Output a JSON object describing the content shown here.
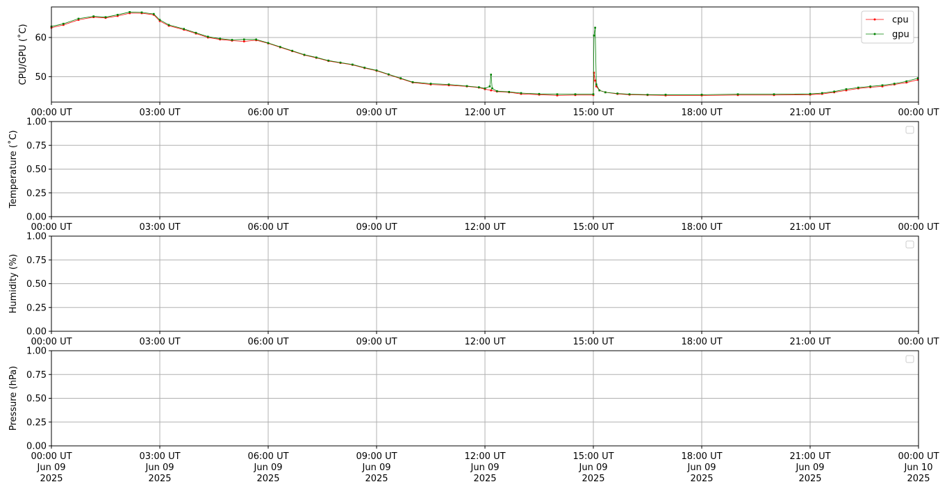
{
  "colors": {
    "cpu": "#ff0000",
    "gpu": "#008000",
    "grid": "#b0b0b0"
  },
  "chart_data": [
    {
      "type": "line",
      "ylabel": "CPU/GPU (˚C)",
      "xlim": [
        "2025-06-09T00:00Z",
        "2025-06-10T00:00Z"
      ],
      "ylim": [
        43.5,
        67.8
      ],
      "y_ticks": [
        "50",
        "60"
      ],
      "x_ticks": [
        "00:00 UT",
        "03:00 UT",
        "06:00 UT",
        "09:00 UT",
        "12:00 UT",
        "15:00 UT",
        "18:00 UT",
        "21:00 UT",
        "00:00 UT"
      ],
      "grid": true,
      "legend": "top-right",
      "series": [
        {
          "name": "cpu",
          "color": "#ff0000",
          "x": [
            "00:00",
            "00:20",
            "00:45",
            "01:10",
            "01:30",
            "01:50",
            "02:10",
            "02:30",
            "02:50",
            "03:00",
            "03:15",
            "03:40",
            "04:00",
            "04:20",
            "04:40",
            "05:00",
            "05:20",
            "05:40",
            "06:00",
            "06:20",
            "06:40",
            "07:00",
            "07:20",
            "07:40",
            "08:00",
            "08:20",
            "08:40",
            "09:00",
            "09:20",
            "09:40",
            "10:00",
            "10:30",
            "11:00",
            "11:30",
            "11:50",
            "12:00",
            "12:10",
            "12:20",
            "12:40",
            "13:00",
            "13:30",
            "14:00",
            "14:30",
            "15:00",
            "15:01",
            "15:03",
            "15:05",
            "15:10",
            "15:20",
            "15:40",
            "16:00",
            "16:30",
            "17:00",
            "18:00",
            "19:00",
            "20:00",
            "21:00",
            "21:20",
            "21:40",
            "22:00",
            "22:20",
            "22:40",
            "23:00",
            "23:20",
            "23:40",
            "23:59"
          ],
          "y": [
            62.5,
            63.2,
            64.5,
            65.2,
            65,
            65.5,
            66.2,
            66.2,
            65.8,
            64.2,
            63,
            62,
            61,
            60,
            59.5,
            59.2,
            59,
            59.3,
            58.5,
            57.5,
            56.5,
            55.5,
            54.8,
            54,
            53.5,
            53,
            52.2,
            51.5,
            50.5,
            49.5,
            48.5,
            48,
            47.8,
            47.5,
            47.2,
            46.8,
            46.5,
            46.2,
            46,
            45.6,
            45.4,
            45.2,
            45.3,
            45.3,
            51,
            49,
            47.5,
            46.5,
            46,
            45.6,
            45.4,
            45.3,
            45.2,
            45.2,
            45.3,
            45.3,
            45.4,
            45.6,
            46,
            46.5,
            47,
            47.3,
            47.5,
            48,
            48.5,
            49.2
          ]
        },
        {
          "name": "gpu",
          "color": "#008000",
          "x": [
            "00:00",
            "00:20",
            "00:45",
            "01:10",
            "01:30",
            "01:50",
            "02:10",
            "02:30",
            "02:50",
            "03:00",
            "03:15",
            "03:40",
            "04:00",
            "04:20",
            "04:40",
            "05:00",
            "05:20",
            "05:40",
            "06:00",
            "06:20",
            "06:40",
            "07:00",
            "07:20",
            "07:40",
            "08:00",
            "08:20",
            "08:40",
            "09:00",
            "09:20",
            "09:40",
            "10:00",
            "10:30",
            "11:00",
            "11:30",
            "11:50",
            "12:00",
            "12:08",
            "12:10",
            "12:12",
            "12:20",
            "12:40",
            "13:00",
            "13:30",
            "14:00",
            "14:30",
            "15:00",
            "15:01",
            "15:03",
            "15:05",
            "15:10",
            "15:20",
            "15:40",
            "16:00",
            "16:30",
            "17:00",
            "18:00",
            "19:00",
            "20:00",
            "21:00",
            "21:20",
            "21:40",
            "22:00",
            "22:20",
            "22:40",
            "23:00",
            "23:20",
            "23:40",
            "23:59"
          ],
          "y": [
            62.8,
            63.5,
            64.8,
            65.4,
            65.2,
            65.8,
            66.5,
            66.4,
            66,
            64.5,
            63.2,
            62.2,
            61.2,
            60.2,
            59.7,
            59.4,
            59.5,
            59.5,
            58.6,
            57.6,
            56.6,
            55.6,
            54.9,
            54.1,
            53.6,
            53.1,
            52.3,
            51.6,
            50.6,
            49.6,
            48.6,
            48.2,
            48,
            47.6,
            47.3,
            47,
            47.5,
            50.5,
            47,
            46.3,
            46.1,
            45.8,
            45.6,
            45.5,
            45.5,
            45.5,
            60.5,
            62.5,
            48,
            46.5,
            46,
            45.7,
            45.5,
            45.4,
            45.4,
            45.4,
            45.5,
            45.5,
            45.6,
            45.8,
            46.2,
            46.8,
            47.2,
            47.5,
            47.8,
            48.2,
            48.8,
            49.6
          ]
        }
      ]
    },
    {
      "type": "line",
      "ylabel": "Temperature (˚C)",
      "xlim": [
        "2025-06-09T00:00Z",
        "2025-06-10T00:00Z"
      ],
      "ylim": [
        0,
        1
      ],
      "y_ticks": [
        "0.00",
        "0.25",
        "0.50",
        "0.75",
        "1.00"
      ],
      "x_ticks": [
        "00:00 UT",
        "03:00 UT",
        "06:00 UT",
        "09:00 UT",
        "12:00 UT",
        "15:00 UT",
        "18:00 UT",
        "21:00 UT",
        "00:00 UT"
      ],
      "grid": true,
      "legend": "top-right",
      "series": []
    },
    {
      "type": "line",
      "ylabel": "Humidity (%)",
      "xlim": [
        "2025-06-09T00:00Z",
        "2025-06-10T00:00Z"
      ],
      "ylim": [
        0,
        1
      ],
      "y_ticks": [
        "0.00",
        "0.25",
        "0.50",
        "0.75",
        "1.00"
      ],
      "x_ticks": [
        "00:00 UT",
        "03:00 UT",
        "06:00 UT",
        "09:00 UT",
        "12:00 UT",
        "15:00 UT",
        "18:00 UT",
        "21:00 UT",
        "00:00 UT"
      ],
      "grid": true,
      "legend": "top-right",
      "series": []
    },
    {
      "type": "line",
      "ylabel": "Pressure (hPa)",
      "xlim": [
        "2025-06-09T00:00Z",
        "2025-06-10T00:00Z"
      ],
      "ylim": [
        0,
        1
      ],
      "y_ticks": [
        "0.00",
        "0.25",
        "0.50",
        "0.75",
        "1.00"
      ],
      "x_ticks": [
        "00:00 UT",
        "03:00 UT",
        "06:00 UT",
        "09:00 UT",
        "12:00 UT",
        "15:00 UT",
        "18:00 UT",
        "21:00 UT",
        "00:00 UT"
      ],
      "x_ticks_line2": [
        "Jun 09",
        "Jun 09",
        "Jun 09",
        "Jun 09",
        "Jun 09",
        "Jun 09",
        "Jun 09",
        "Jun 09",
        "Jun 10"
      ],
      "x_ticks_line3": [
        "2025",
        "2025",
        "2025",
        "2025",
        "2025",
        "2025",
        "2025",
        "2025",
        "2025"
      ],
      "grid": true,
      "legend": "top-right",
      "series": []
    }
  ]
}
